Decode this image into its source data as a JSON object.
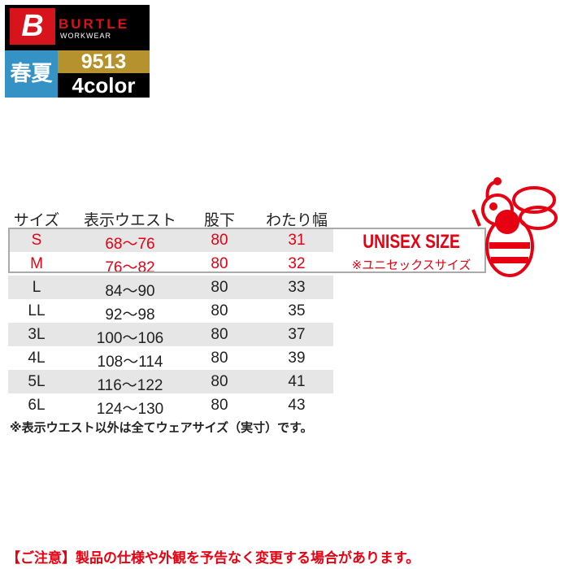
{
  "logo": {
    "brand": "BURTLE",
    "sub": "WORKWEAR",
    "mark": "B"
  },
  "badges": {
    "season": "春夏",
    "model": "9513",
    "colors": "4color"
  },
  "table": {
    "headers": [
      "サイズ",
      "表示ウエスト",
      "股下",
      "わたり幅"
    ],
    "rows": [
      [
        "S",
        "68〜76",
        "80",
        "31"
      ],
      [
        "M",
        "76〜82",
        "80",
        "32"
      ],
      [
        "L",
        "84〜90",
        "80",
        "33"
      ],
      [
        "LL",
        "92〜98",
        "80",
        "35"
      ],
      [
        "3L",
        "100〜106",
        "80",
        "37"
      ],
      [
        "4L",
        "108〜114",
        "80",
        "39"
      ],
      [
        "5L",
        "116〜122",
        "80",
        "41"
      ],
      [
        "6L",
        "124〜130",
        "80",
        "43"
      ]
    ]
  },
  "unisex": {
    "title": "UNISEX SIZE",
    "subtitle": "※ユニセックスサイズ"
  },
  "note": "※表示ウエスト以外は全てウェアサイズ（実寸）です。",
  "caution": "【ご注意】製品の仕様や外観を予告なく変更する場合があります。",
  "colors": {
    "red": "#e60012",
    "gray_row": "#e6e6e6",
    "blue": "#3592c4",
    "gold": "#b5922d"
  }
}
